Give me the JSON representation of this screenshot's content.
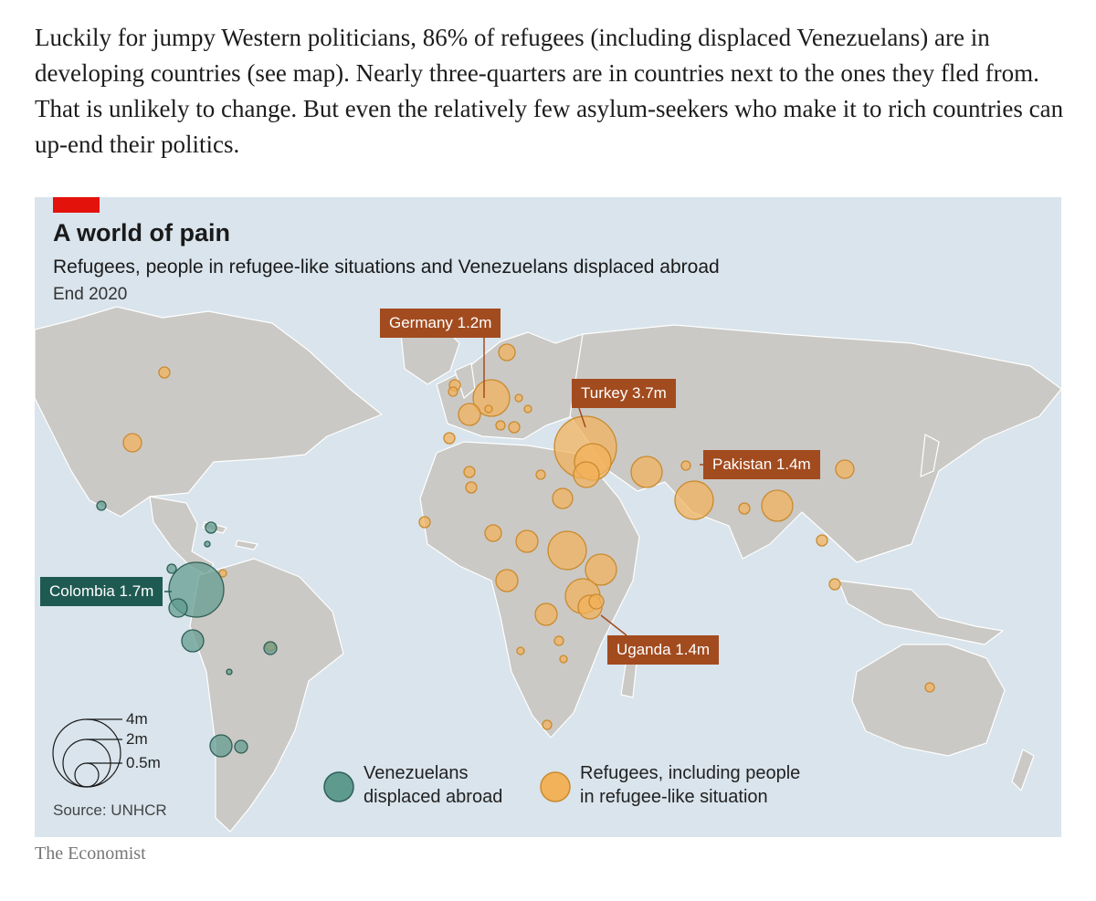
{
  "article": {
    "paragraph": "Luckily for jumpy Western politicians, 86% of refugees (including displaced Venezuelans) are in developing countries (see map). Nearly three-quarters are in countries next to the ones they fled from. That is unlikely to change. But even the relatively few asylum-seekers who make it to rich countries can up-end their politics."
  },
  "figure": {
    "title": "A world of pain",
    "subtitle": "Refugees, people in refugee-like situations and Venezuelans displaced abroad",
    "period": "End 2020",
    "source": "Source: UNHCR",
    "colors": {
      "ocean": "#d9e4ec",
      "land": "#cbc9c5",
      "refugees": "#f2b25a",
      "venezuelans": "#5f9a8e",
      "callout_orange": "#a24b1f",
      "callout_teal": "#1f5a52",
      "accent_red": "#e3120b"
    },
    "callouts": [
      {
        "id": "germany",
        "label": "Germany 1.2m",
        "color": "orange",
        "value_m": 1.2
      },
      {
        "id": "turkey",
        "label": "Turkey 3.7m",
        "color": "orange",
        "value_m": 3.7
      },
      {
        "id": "pakistan",
        "label": "Pakistan 1.4m",
        "color": "orange",
        "value_m": 1.4
      },
      {
        "id": "colombia",
        "label": "Colombia 1.7m",
        "color": "teal",
        "value_m": 1.7
      },
      {
        "id": "uganda",
        "label": "Uganda 1.4m",
        "color": "orange",
        "value_m": 1.4
      }
    ],
    "size_legend": [
      "4m",
      "2m",
      "0.5m"
    ],
    "legend": {
      "venezuelans": [
        "Venezuelans",
        "displaced abroad"
      ],
      "refugees": [
        "Refugees, including people",
        "in refugee-like situation"
      ]
    }
  },
  "credit": "The Economist"
}
